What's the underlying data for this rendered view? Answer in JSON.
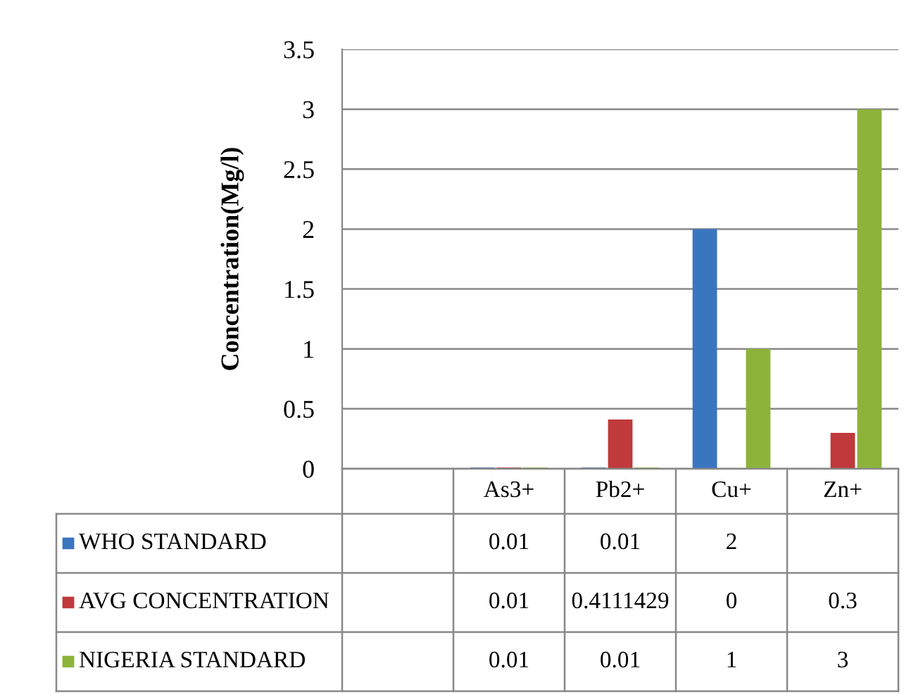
{
  "chart_data": {
    "type": "bar",
    "ylabel": "Concentration(Mg/l)",
    "categories": [
      null,
      "As3+",
      "Pb2+",
      "Cu+",
      "Zn+"
    ],
    "series": [
      {
        "name": "WHO STANDARD",
        "color": "#3a75c0",
        "values": [
          null,
          0.01,
          0.01,
          2,
          null
        ]
      },
      {
        "name": "AVG CONCENTRATION",
        "color": "#c0393b",
        "values": [
          null,
          0.01,
          0.4111429,
          0,
          0.3
        ]
      },
      {
        "name": "NIGERIA STANDARD",
        "color": "#8db33a",
        "values": [
          null,
          0.01,
          0.01,
          1,
          3
        ]
      }
    ],
    "ylim": [
      0,
      3.5
    ],
    "yticks": [
      0,
      0.5,
      1,
      1.5,
      2,
      2.5,
      3,
      3.5
    ],
    "grid": "y",
    "data_labels": true,
    "legend": "bottom left"
  }
}
